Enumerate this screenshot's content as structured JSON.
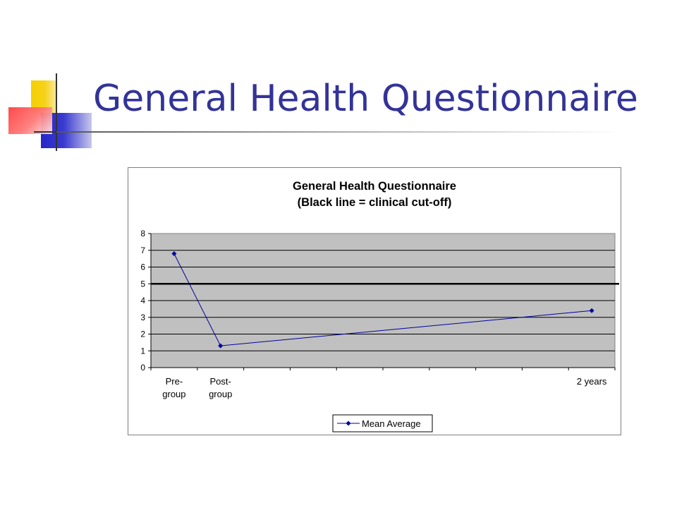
{
  "slide": {
    "title": "General Health Questionnaire"
  },
  "chart_data": {
    "type": "line",
    "title": "General Health Questionnaire",
    "subtitle": "(Black line = clinical cut-off)",
    "categories": [
      "Pre-\ngroup",
      "Post-\ngroup",
      "",
      "",
      "",
      "",
      "",
      "",
      "",
      "2 years"
    ],
    "series": [
      {
        "name": "Mean Average",
        "values": [
          6.8,
          1.3,
          null,
          null,
          null,
          null,
          null,
          null,
          null,
          3.4
        ],
        "color": "#0000a0",
        "marker": "diamond"
      }
    ],
    "reference_lines": [
      {
        "y": 5,
        "color": "#000000"
      }
    ],
    "ylim": [
      0,
      8
    ],
    "yticks": [
      0,
      1,
      2,
      3,
      4,
      5,
      6,
      7,
      8
    ],
    "grid": true,
    "plot_background": "#c0c0c0",
    "legend_position": "bottom"
  }
}
